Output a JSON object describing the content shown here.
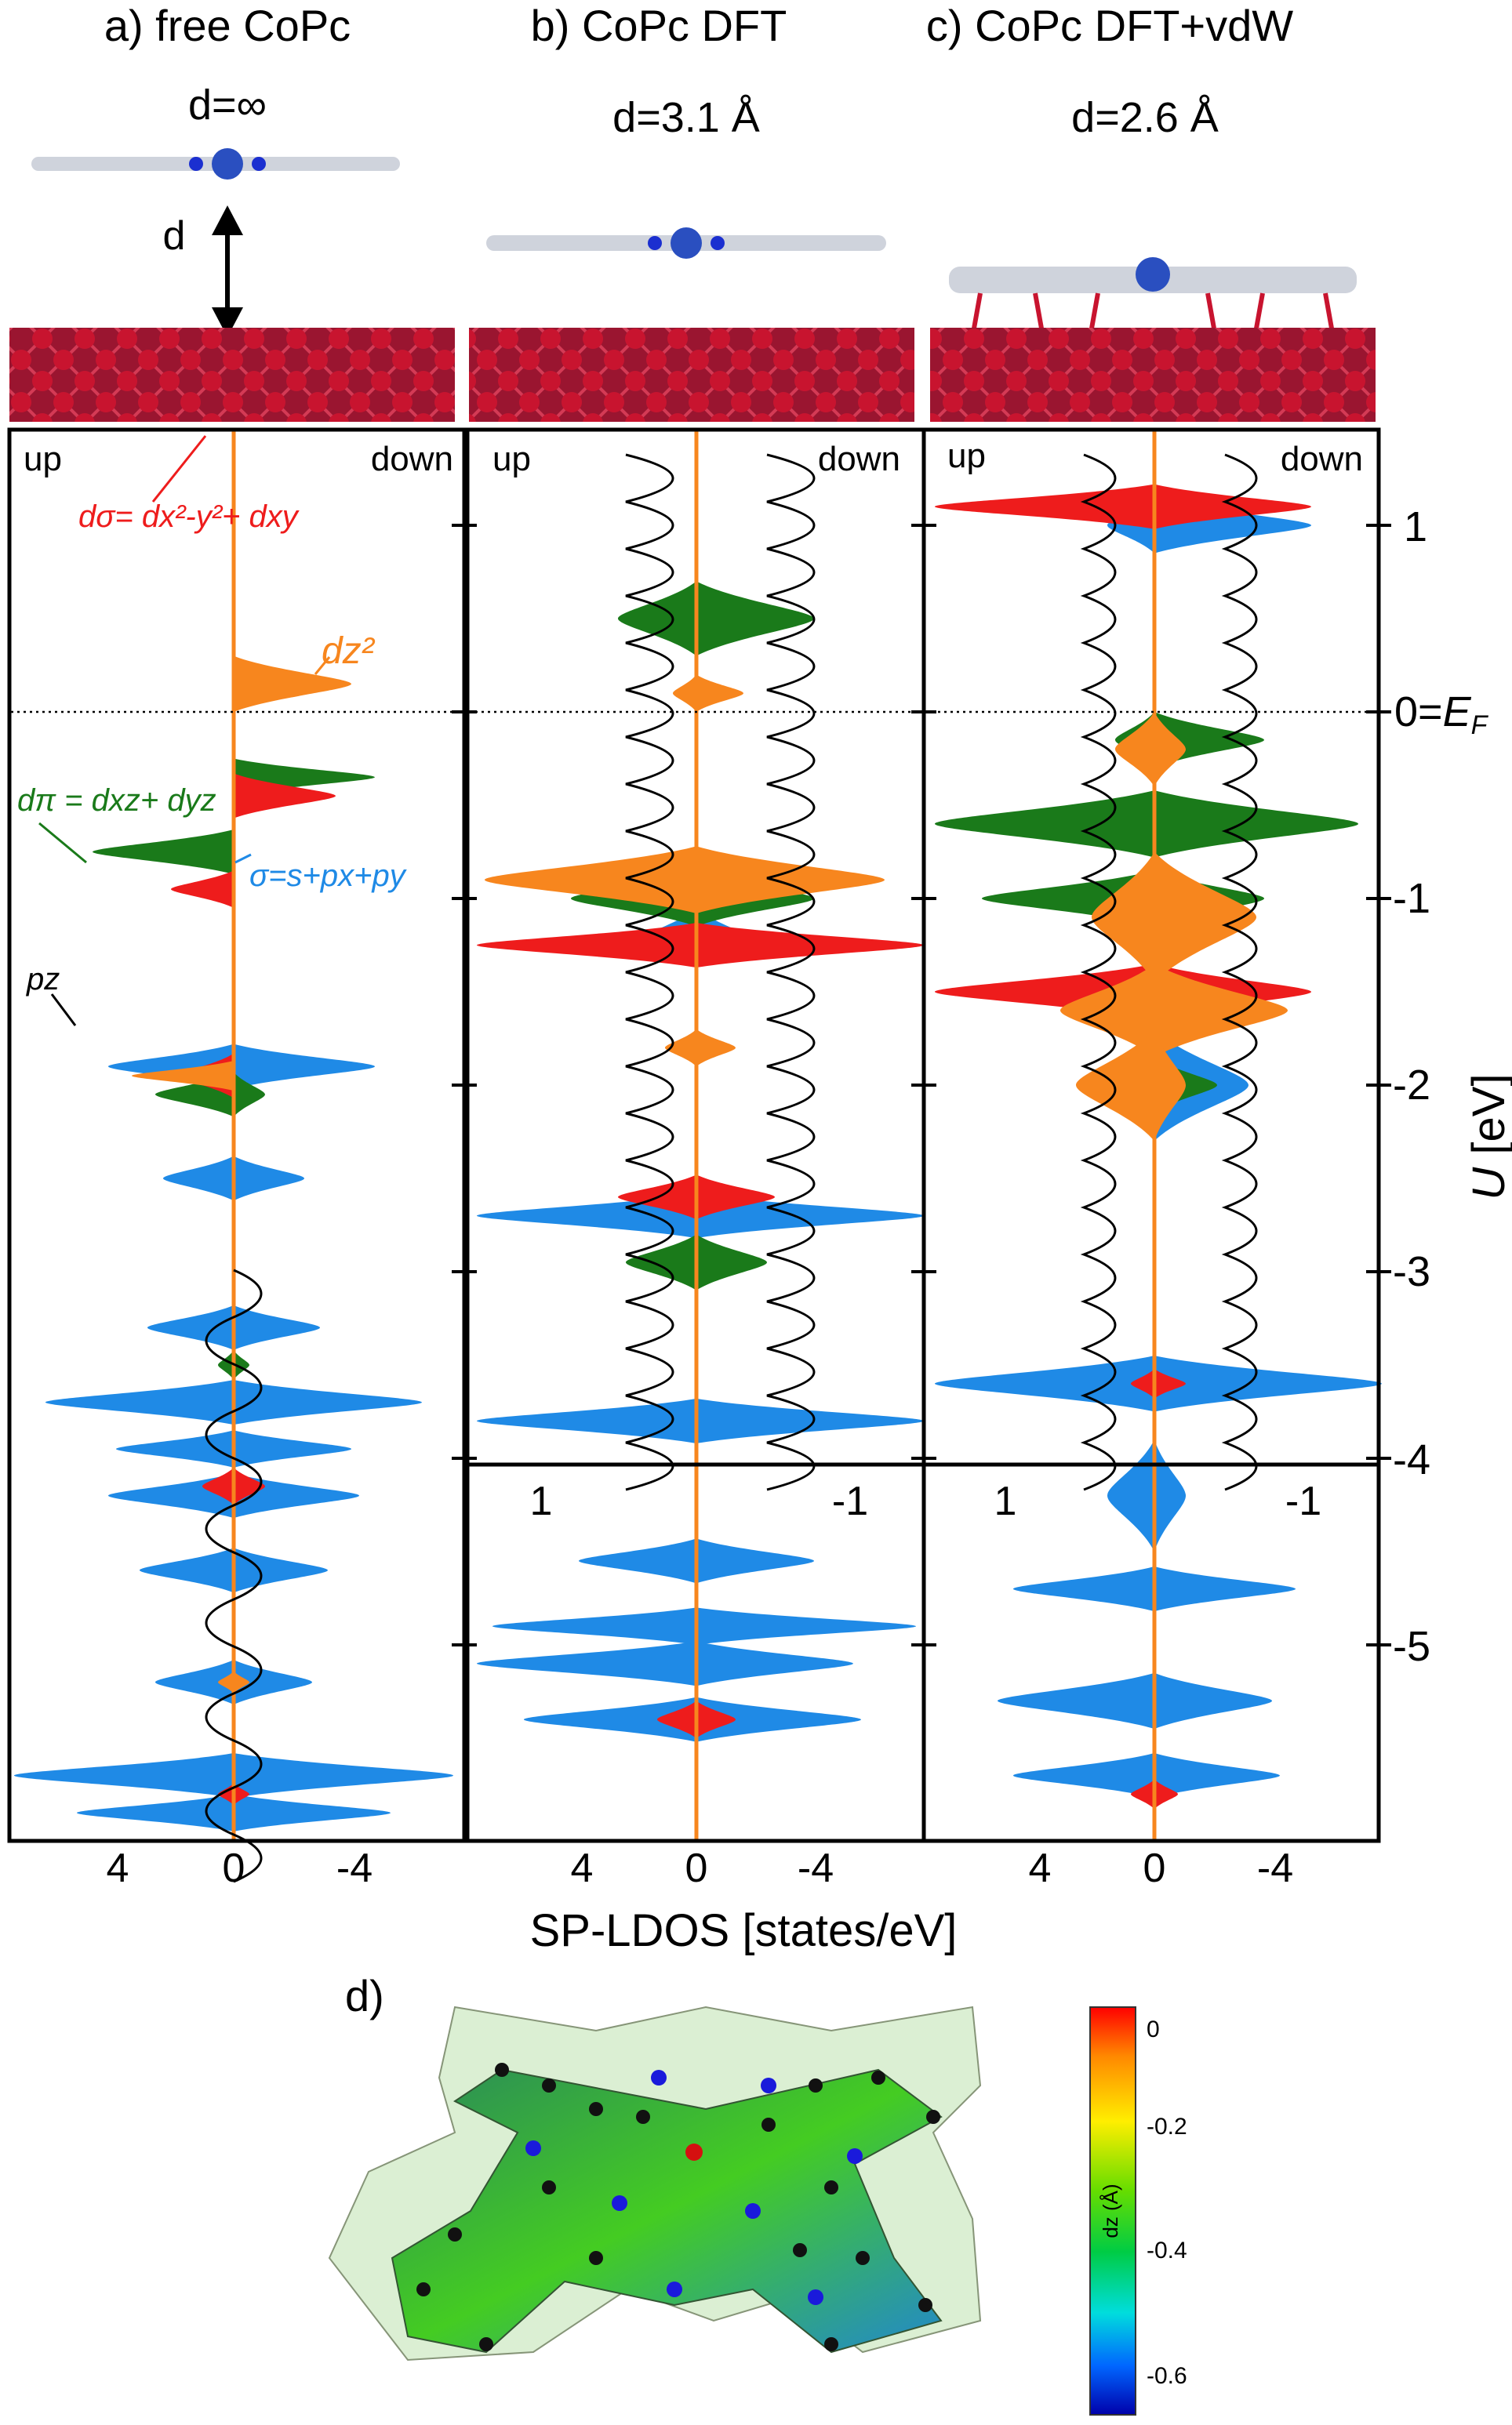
{
  "panels": [
    {
      "title": "a) free CoPc",
      "distance": "d=∞",
      "up": "up",
      "down": "down"
    },
    {
      "title": "b) CoPc DFT",
      "distance": "d=3.1 Å",
      "up": "up",
      "down": "down"
    },
    {
      "title": "c) CoPc DFT+vdW",
      "distance": "d=2.6 Å",
      "up": "up",
      "down": "down"
    }
  ],
  "separation_label": "d",
  "axes": {
    "xlabel": "SP-LDOS [states/eV]",
    "ylabel_var": "U",
    "ylabel_unit": " [eV]",
    "y_ticks": [
      "1",
      "0=",
      "-1",
      "-2",
      "-3",
      "-4",
      "-5"
    ],
    "fermi_label": "E",
    "fermi_sub": "F",
    "x_ticks_main": [
      "4",
      "0",
      "-4"
    ],
    "x_ticks_inset": [
      "1",
      "-1"
    ]
  },
  "legend": {
    "d_sigma": "dσ= dx²-y²+ dxy",
    "d_z2": "dz²",
    "d_pi": "dπ = dxz+ dyz",
    "sigma": "σ=s+px+py",
    "p_z": "pz"
  },
  "colors": {
    "d_sigma": "#ee1c1c",
    "d_z2": "#f7861e",
    "d_pi": "#1a7a1a",
    "sigma": "#1f8ae6",
    "p_z": "#000000"
  },
  "panel_d": {
    "label": "d)",
    "colorbar_title": "dz (Å)",
    "colorbar_ticks": [
      "0",
      "-0.2",
      "-0.4",
      "-0.6"
    ]
  }
}
